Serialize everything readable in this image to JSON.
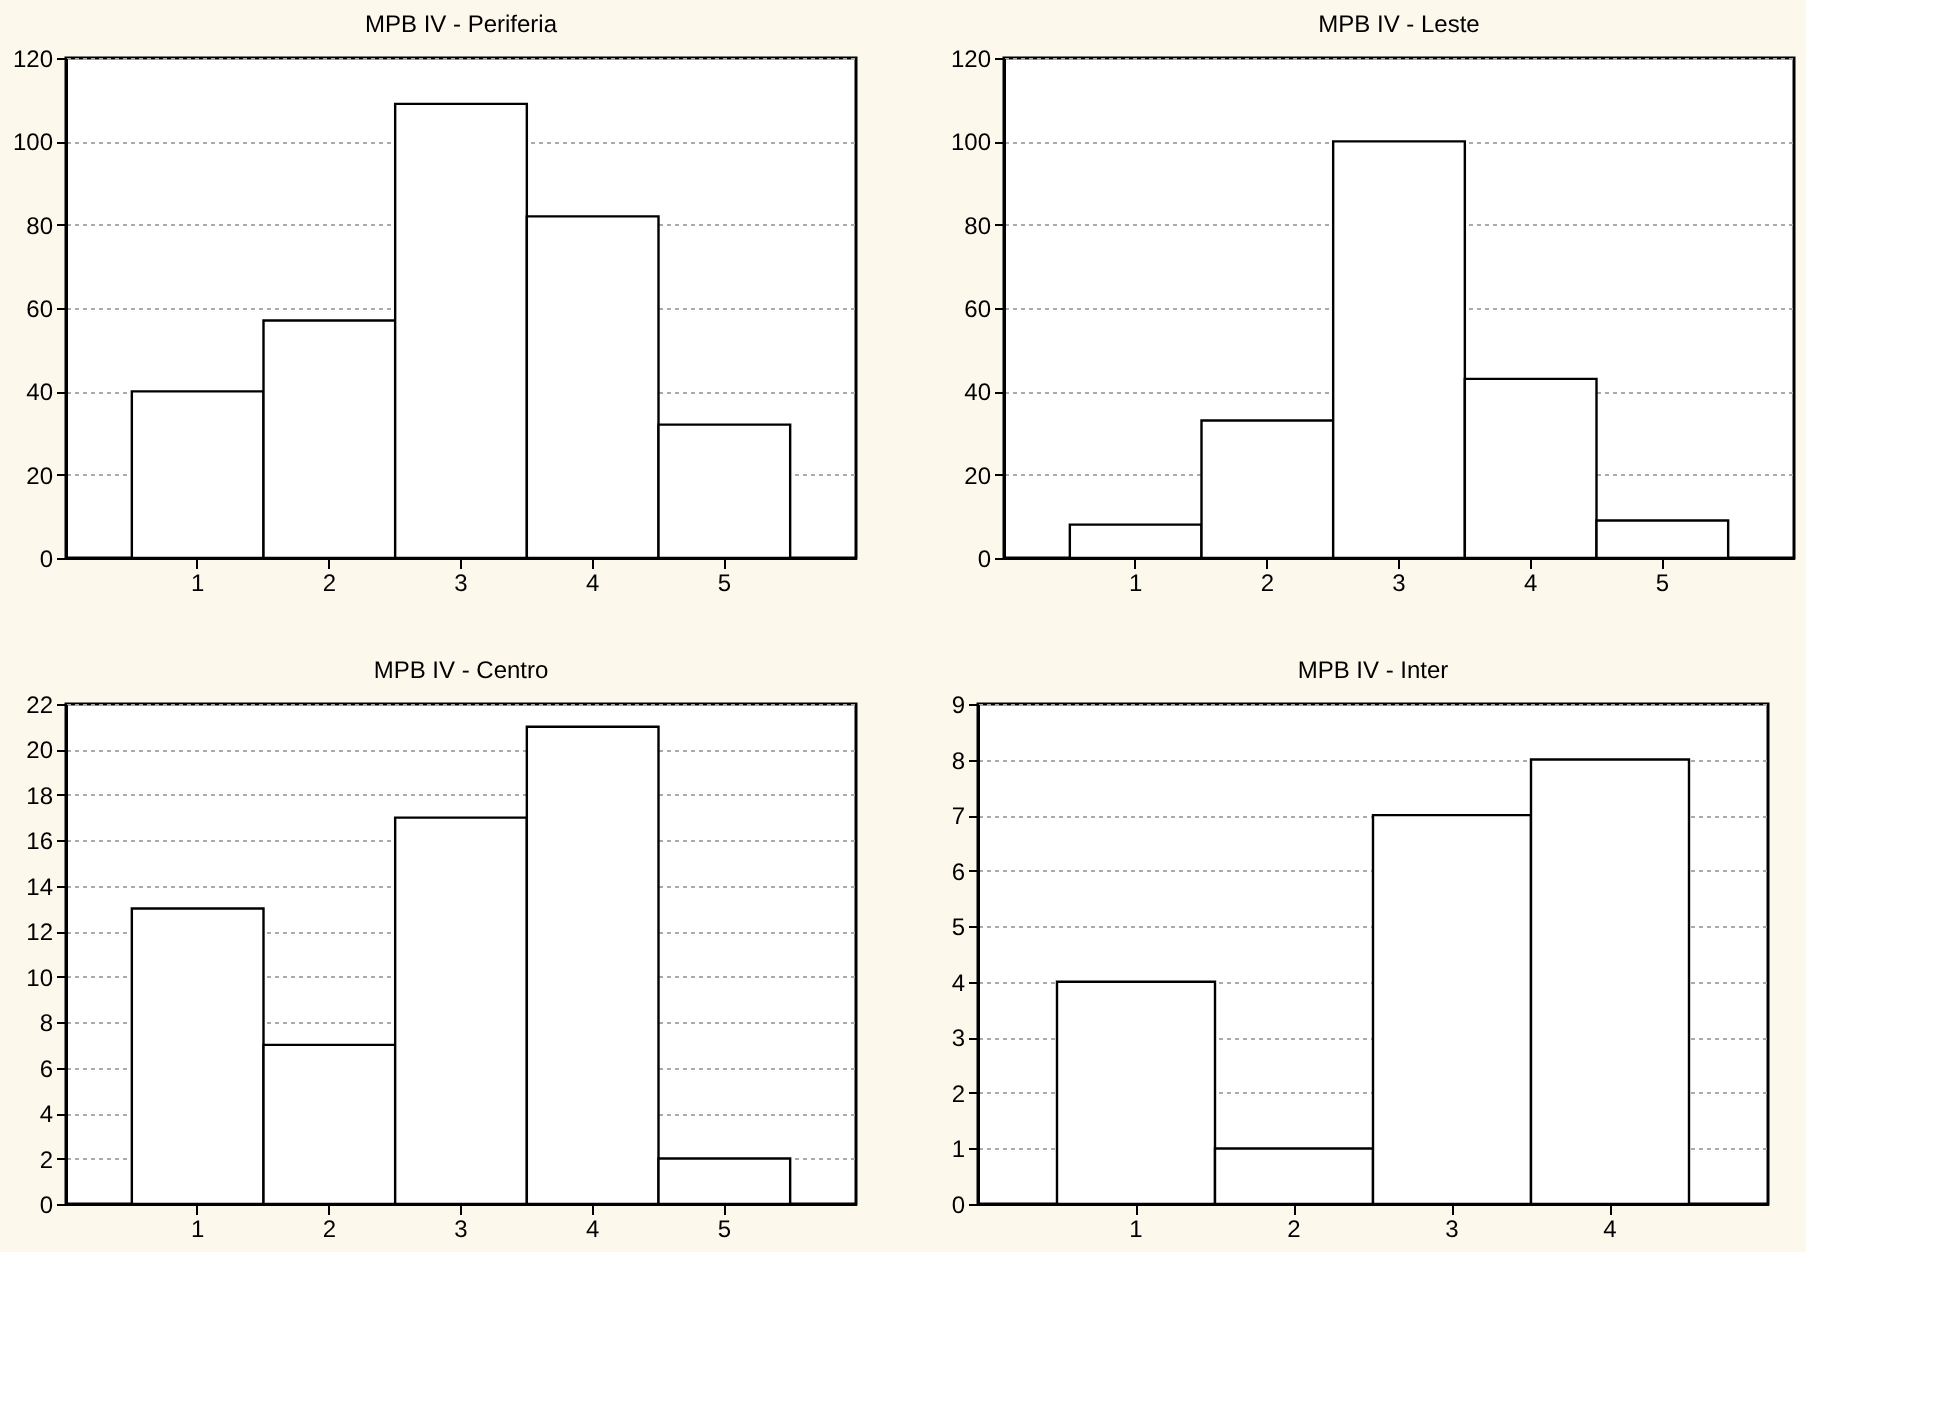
{
  "chart_data": [
    {
      "type": "bar",
      "title": "MPB IV - Periferia",
      "categories": [
        "1",
        "2",
        "3",
        "4",
        "5"
      ],
      "values": [
        40,
        57,
        109,
        82,
        32
      ],
      "color": "#ffffff",
      "ylim": [
        0,
        120
      ],
      "yticks": [
        0,
        20,
        40,
        60,
        80,
        100,
        120
      ],
      "grid": "y"
    },
    {
      "type": "bar",
      "title": "MPB IV - Leste",
      "categories": [
        "1",
        "2",
        "3",
        "4",
        "5"
      ],
      "values": [
        8,
        33,
        100,
        43,
        9
      ],
      "color": "#ffffff",
      "ylim": [
        0,
        120
      ],
      "yticks": [
        0,
        20,
        40,
        60,
        80,
        100,
        120
      ],
      "grid": "y"
    },
    {
      "type": "bar",
      "title": "MPB IV - Centro",
      "categories": [
        "1",
        "2",
        "3",
        "4",
        "5"
      ],
      "values": [
        13,
        7,
        17,
        21,
        2
      ],
      "color": "#ffffff",
      "ylim": [
        0,
        22
      ],
      "yticks": [
        0,
        2,
        4,
        6,
        8,
        10,
        12,
        14,
        16,
        18,
        20,
        22
      ],
      "grid": "y"
    },
    {
      "type": "bar",
      "title": "MPB IV - Inter",
      "categories": [
        "1",
        "2",
        "3",
        "4"
      ],
      "values": [
        4,
        1,
        7,
        8
      ],
      "color": "#ffffff",
      "ylim": [
        0,
        9
      ],
      "yticks": [
        0,
        1,
        2,
        3,
        4,
        5,
        6,
        7,
        8,
        9
      ],
      "grid": "y"
    }
  ]
}
